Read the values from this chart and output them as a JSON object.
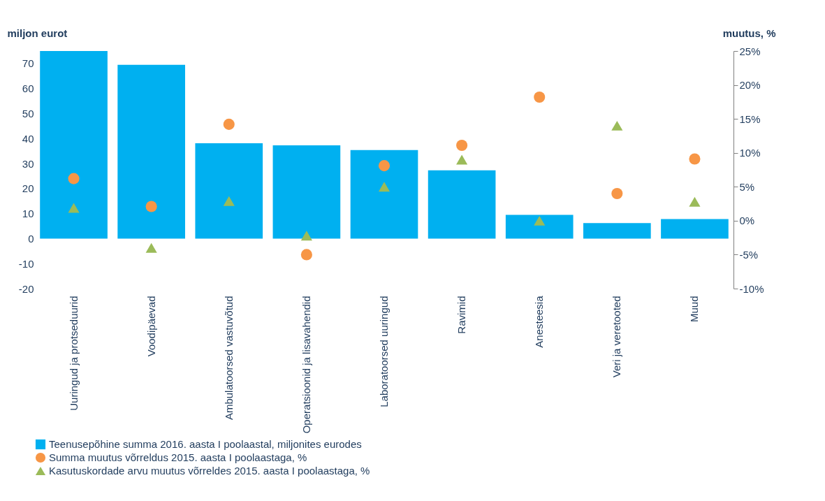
{
  "chart_data": {
    "type": "bar",
    "ylabel": "miljon eurot",
    "y2label": "muutus, %",
    "categories": [
      "Uuringud ja protseduurid",
      "Voodipäevad",
      "Ambulatoorsed vastuvõtud",
      "Operatsioonid ja lisavahendid",
      "Laboratoorsed uuringud",
      "Ravimid",
      "Anesteesia",
      "Veri ja veretooted",
      "Muud"
    ],
    "series": [
      {
        "name": "Teenusepõhine summa 2016. aasta I poolaastal, miljonites eurodes",
        "color": "#00b0f0",
        "values": [
          75,
          69.5,
          38.1,
          37.3,
          35.4,
          27.3,
          9.5,
          6.2,
          7.8
        ]
      },
      {
        "name": "Summa muutus võrreldus 2015. aasta I poolaastaga, %",
        "type": "scatter",
        "axis": "y2",
        "marker": "circle",
        "color": "#f79646",
        "values": [
          6.2,
          2.1,
          14.2,
          -5.0,
          8.1,
          11.1,
          18.2,
          4.0,
          9.1
        ]
      },
      {
        "name": "Kasutuskordade arvu muutus võrreldes 2015. aasta I poolaastaga, %",
        "type": "scatter",
        "axis": "y2",
        "marker": "triangle",
        "color": "#9bbb59",
        "values": [
          1.9,
          -4.0,
          2.9,
          -2.2,
          5.0,
          9.0,
          0.0,
          14.0,
          2.8
        ]
      }
    ],
    "ylim": [
      -20,
      75
    ],
    "yticks": [
      -20,
      -10,
      0,
      10,
      20,
      30,
      40,
      50,
      60,
      70
    ],
    "y2lim": [
      -10,
      25
    ],
    "y2ticks": [
      {
        "value": -10,
        "label": "-10%"
      },
      {
        "value": -5,
        "label": "-5%"
      },
      {
        "value": 0,
        "label": "0%"
      },
      {
        "value": 5,
        "label": "5%"
      },
      {
        "value": 10,
        "label": "10%"
      },
      {
        "value": 15,
        "label": "15%"
      },
      {
        "value": 20,
        "label": "20%"
      },
      {
        "value": 25,
        "label": "25%"
      }
    ],
    "grid": false,
    "legend": "bottom"
  }
}
